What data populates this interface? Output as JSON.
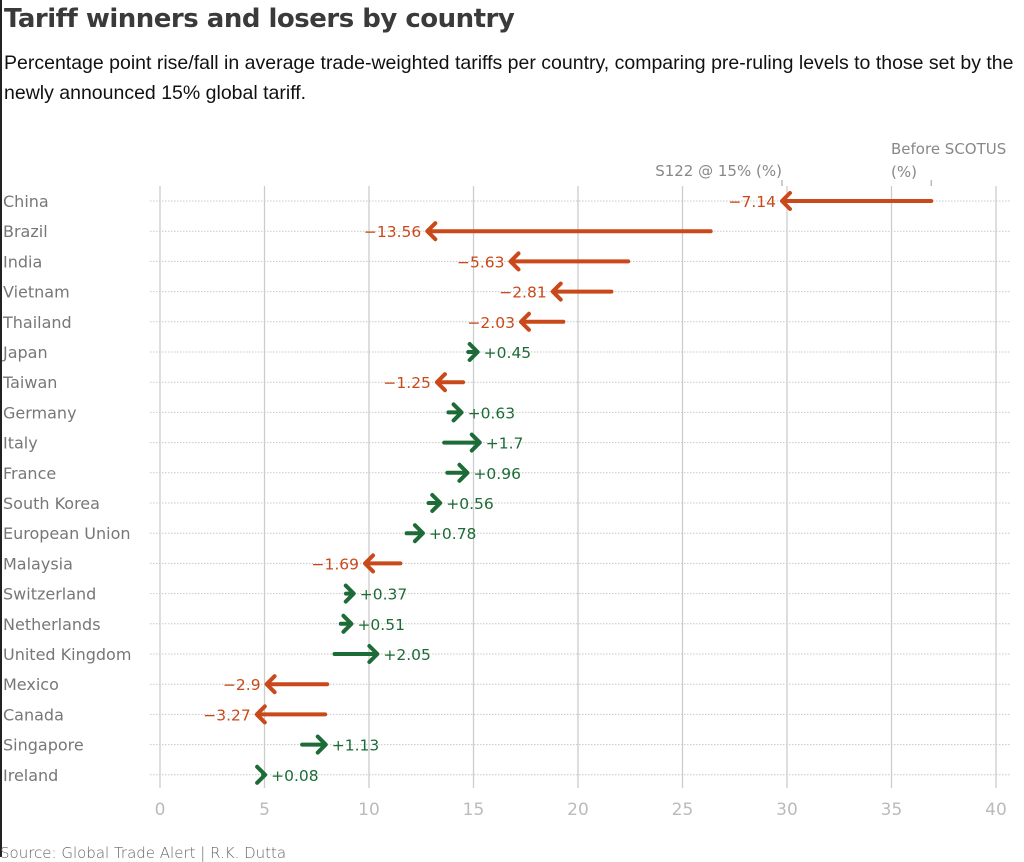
{
  "title": "Tariff winners and losers by country",
  "subtitle": "Percentage point rise/fall in average trade-weighted tariffs per country, comparing pre-ruling levels to those set by the newly announced 15% global tariff.",
  "source": "Source: Global Trade Alert | R.K. Dutta",
  "colors": {
    "decrease": "#c9491a",
    "increase": "#1d6b36",
    "label": "#777777",
    "grid": "#cccccc"
  },
  "chart_data": {
    "type": "arrow",
    "title": "Tariff winners and losers by country",
    "xlabel": "",
    "ylabel": "",
    "xlim": [
      0,
      40
    ],
    "xticks": [
      0,
      5,
      10,
      15,
      20,
      25,
      30,
      35,
      40
    ],
    "legend": {
      "end_label": "S122 @ 15% (%)",
      "start_label_line1": "Before SCOTUS",
      "start_label_line2": "(%)",
      "placement": "top-right"
    },
    "grid": true,
    "rows": [
      {
        "country": "China",
        "before": 36.9,
        "after": 29.76,
        "change": "−7.14"
      },
      {
        "country": "Brazil",
        "before": 26.35,
        "after": 12.79,
        "change": "−13.56"
      },
      {
        "country": "India",
        "before": 22.4,
        "after": 16.77,
        "change": "−5.63"
      },
      {
        "country": "Vietnam",
        "before": 21.6,
        "after": 18.79,
        "change": "−2.81"
      },
      {
        "country": "Thailand",
        "before": 19.3,
        "after": 17.27,
        "change": "−2.03"
      },
      {
        "country": "Japan",
        "before": 14.75,
        "after": 15.2,
        "change": "+0.45"
      },
      {
        "country": "Taiwan",
        "before": 14.5,
        "after": 13.25,
        "change": "−1.25"
      },
      {
        "country": "Germany",
        "before": 13.8,
        "after": 14.43,
        "change": "+0.63"
      },
      {
        "country": "Italy",
        "before": 13.6,
        "after": 15.3,
        "change": "+1.7"
      },
      {
        "country": "France",
        "before": 13.75,
        "after": 14.71,
        "change": "+0.96"
      },
      {
        "country": "South Korea",
        "before": 12.85,
        "after": 13.41,
        "change": "+0.56"
      },
      {
        "country": "European Union",
        "before": 11.8,
        "after": 12.58,
        "change": "+0.78"
      },
      {
        "country": "Malaysia",
        "before": 11.5,
        "after": 9.81,
        "change": "−1.69"
      },
      {
        "country": "Switzerland",
        "before": 8.9,
        "after": 9.27,
        "change": "+0.37"
      },
      {
        "country": "Netherlands",
        "before": 8.65,
        "after": 9.16,
        "change": "+0.51"
      },
      {
        "country": "United Kingdom",
        "before": 8.35,
        "after": 10.4,
        "change": "+2.05"
      },
      {
        "country": "Mexico",
        "before": 8.0,
        "after": 5.1,
        "change": "−2.9"
      },
      {
        "country": "Canada",
        "before": 7.9,
        "after": 4.63,
        "change": "−3.27"
      },
      {
        "country": "Singapore",
        "before": 6.8,
        "after": 7.93,
        "change": "+1.13"
      },
      {
        "country": "Ireland",
        "before": 4.95,
        "after": 5.03,
        "change": "+0.08"
      }
    ]
  }
}
